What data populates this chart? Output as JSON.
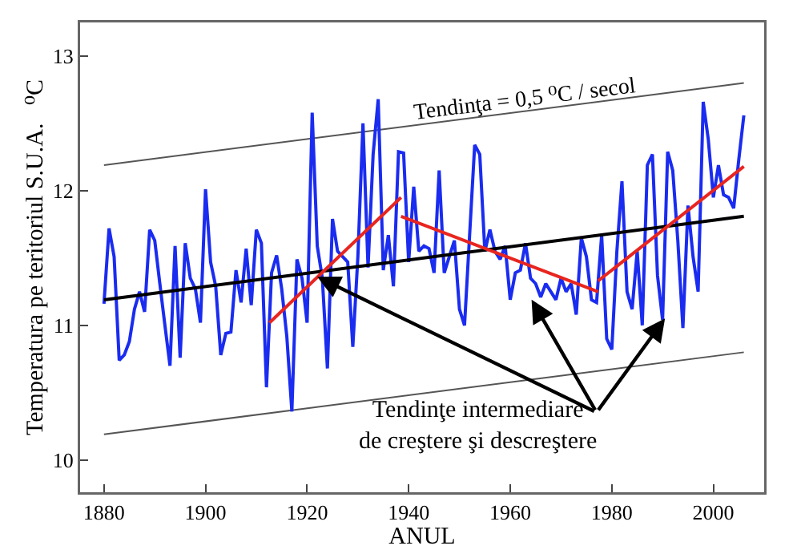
{
  "chart_data": {
    "type": "line",
    "xlabel": "ANUL",
    "ylabel": "Temperatura pe teritoriul S.U.A.   ⁰C",
    "annotations": [
      "Tendinţa = 0,5 ⁰C / secol",
      {
        "text": "Tendinţe intermediare\nde creştere şi descreştere",
        "x": 1922,
        "y": 11.36
      }
    ],
    "xlim": [
      1875.3,
      2010
    ],
    "ylim": [
      9.76,
      13.25
    ],
    "xticks": [
      1880,
      1900,
      1920,
      1940,
      1960,
      1980,
      2000
    ],
    "yticks": [
      10,
      11,
      12,
      13
    ],
    "grid": false,
    "marker": "none",
    "line_style": "solid",
    "series": [
      {
        "color": "#555555",
        "x": [
          1880,
          2006
        ],
        "values": [
          12.19,
          12.8
        ]
      },
      {
        "color": "#555555",
        "x": [
          1880,
          2006
        ],
        "values": [
          10.19,
          10.8
        ]
      },
      {
        "color": "#1a2cf0",
        "x": [
          1880,
          1881,
          1882,
          1883,
          1884,
          1885,
          1886,
          1887,
          1888,
          1889,
          1890,
          1891,
          1892,
          1893,
          1894,
          1895,
          1896,
          1897,
          1898,
          1899,
          1900,
          1901,
          1902,
          1903,
          1904,
          1905,
          1906,
          1907,
          1908,
          1909,
          1910,
          1911,
          1912,
          1913,
          1914,
          1915,
          1916,
          1917,
          1918,
          1919,
          1920,
          1921,
          1922,
          1923,
          1924,
          1925,
          1926,
          1927,
          1928,
          1929,
          1930,
          1931,
          1932,
          1933,
          1934,
          1935,
          1936,
          1937,
          1938,
          1939,
          1940,
          1941,
          1942,
          1943,
          1944,
          1945,
          1946,
          1947,
          1948,
          1949,
          1950,
          1951,
          1952,
          1953,
          1954,
          1955,
          1956,
          1957,
          1958,
          1959,
          1960,
          1961,
          1962,
          1963,
          1964,
          1965,
          1966,
          1967,
          1968,
          1969,
          1970,
          1971,
          1972,
          1973,
          1974,
          1975,
          1976,
          1977,
          1978,
          1979,
          1980,
          1981,
          1982,
          1983,
          1984,
          1985,
          1986,
          1987,
          1988,
          1989,
          1990,
          1991,
          1992,
          1993,
          1994,
          1995,
          1996,
          1997,
          1998,
          1999,
          2000,
          2001,
          2002,
          2003,
          2004,
          2005,
          2006
        ],
        "values": [
          11.16,
          11.72,
          11.51,
          10.74,
          10.78,
          10.88,
          11.12,
          11.25,
          11.1,
          11.71,
          11.63,
          11.31,
          11.0,
          10.7,
          11.59,
          10.76,
          11.61,
          11.35,
          11.27,
          11.02,
          12.01,
          11.47,
          11.29,
          10.78,
          10.94,
          10.95,
          11.41,
          11.17,
          11.57,
          11.15,
          11.71,
          11.61,
          10.54,
          11.39,
          11.52,
          11.27,
          10.92,
          10.36,
          11.49,
          11.35,
          11.02,
          12.58,
          11.59,
          11.35,
          10.68,
          11.79,
          11.55,
          11.51,
          11.47,
          10.84,
          11.51,
          12.5,
          11.43,
          12.27,
          12.68,
          11.41,
          11.67,
          11.29,
          12.29,
          12.28,
          11.47,
          12.03,
          11.55,
          11.59,
          11.57,
          11.39,
          12.15,
          11.39,
          11.51,
          11.63,
          11.12,
          11.0,
          11.67,
          12.34,
          12.27,
          11.55,
          11.71,
          11.55,
          11.49,
          11.59,
          11.19,
          11.39,
          11.41,
          11.61,
          11.35,
          11.31,
          11.21,
          11.31,
          11.25,
          11.19,
          11.35,
          11.25,
          11.31,
          11.08,
          11.65,
          11.51,
          11.19,
          11.17,
          11.67,
          10.9,
          10.82,
          11.55,
          12.07,
          11.25,
          11.12,
          11.55,
          11.0,
          12.19,
          12.27,
          11.37,
          11.04,
          12.29,
          12.15,
          11.63,
          10.98,
          11.89,
          11.51,
          11.25,
          12.66,
          12.38,
          11.95,
          12.19,
          11.97,
          11.95,
          11.87,
          12.23,
          12.56
        ]
      },
      {
        "color": "#000000",
        "x": [
          1880,
          2006
        ],
        "values": [
          11.19,
          11.81
        ]
      },
      {
        "color": "#e8251f",
        "x": [
          1912.6,
          1938.5
        ],
        "values": [
          11.02,
          11.95
        ]
      },
      {
        "color": "#e8251f",
        "x": [
          1938.5,
          1977.3
        ],
        "values": [
          11.81,
          11.25
        ]
      },
      {
        "color": "#e8251f",
        "x": [
          1977.3,
          2006
        ],
        "values": [
          11.33,
          12.18
        ]
      }
    ]
  }
}
